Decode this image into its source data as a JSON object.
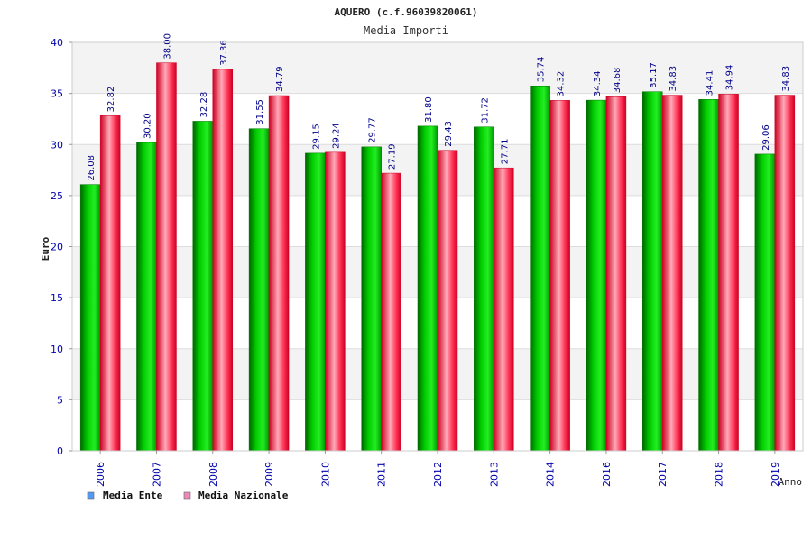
{
  "chart_data": {
    "type": "bar",
    "title": "AQUERO (c.f.96039820061)",
    "subtitle": "Media Importi",
    "xlabel": "Anno",
    "ylabel": "Euro",
    "ylim": [
      0,
      40
    ],
    "yticks": [
      0,
      5,
      10,
      15,
      20,
      25,
      30,
      35,
      40
    ],
    "grid": true,
    "legend_position": "bottom-left",
    "categories": [
      "2006",
      "2007",
      "2008",
      "2009",
      "2010",
      "2011",
      "2012",
      "2013",
      "2014",
      "2016",
      "2017",
      "2018",
      "2019"
    ],
    "series": [
      {
        "name": "Media Ente",
        "color": "#00bb00",
        "legend_color": "#5599ee",
        "values": [
          26.08,
          30.2,
          32.28,
          31.55,
          29.15,
          29.77,
          31.8,
          31.72,
          35.74,
          34.34,
          35.17,
          34.41,
          29.06
        ],
        "labels": [
          "26.08",
          "30.20",
          "32.28",
          "31.55",
          "29.15",
          "29.77",
          "31.80",
          "31.72",
          "35.74",
          "34.34",
          "35.17",
          "34.41",
          "29.06"
        ]
      },
      {
        "name": "Media Nazionale",
        "color": "#ee1133",
        "legend_color": "#ee88bb",
        "values": [
          32.82,
          38.0,
          37.36,
          34.79,
          29.24,
          27.19,
          29.43,
          27.71,
          34.32,
          34.68,
          34.83,
          34.94,
          34.83
        ],
        "labels": [
          "32.82",
          "38.00",
          "37.36",
          "34.79",
          "29.24",
          "27.19",
          "29.43",
          "27.71",
          "34.32",
          "34.68",
          "34.83",
          "34.94",
          "34.83"
        ]
      }
    ]
  }
}
